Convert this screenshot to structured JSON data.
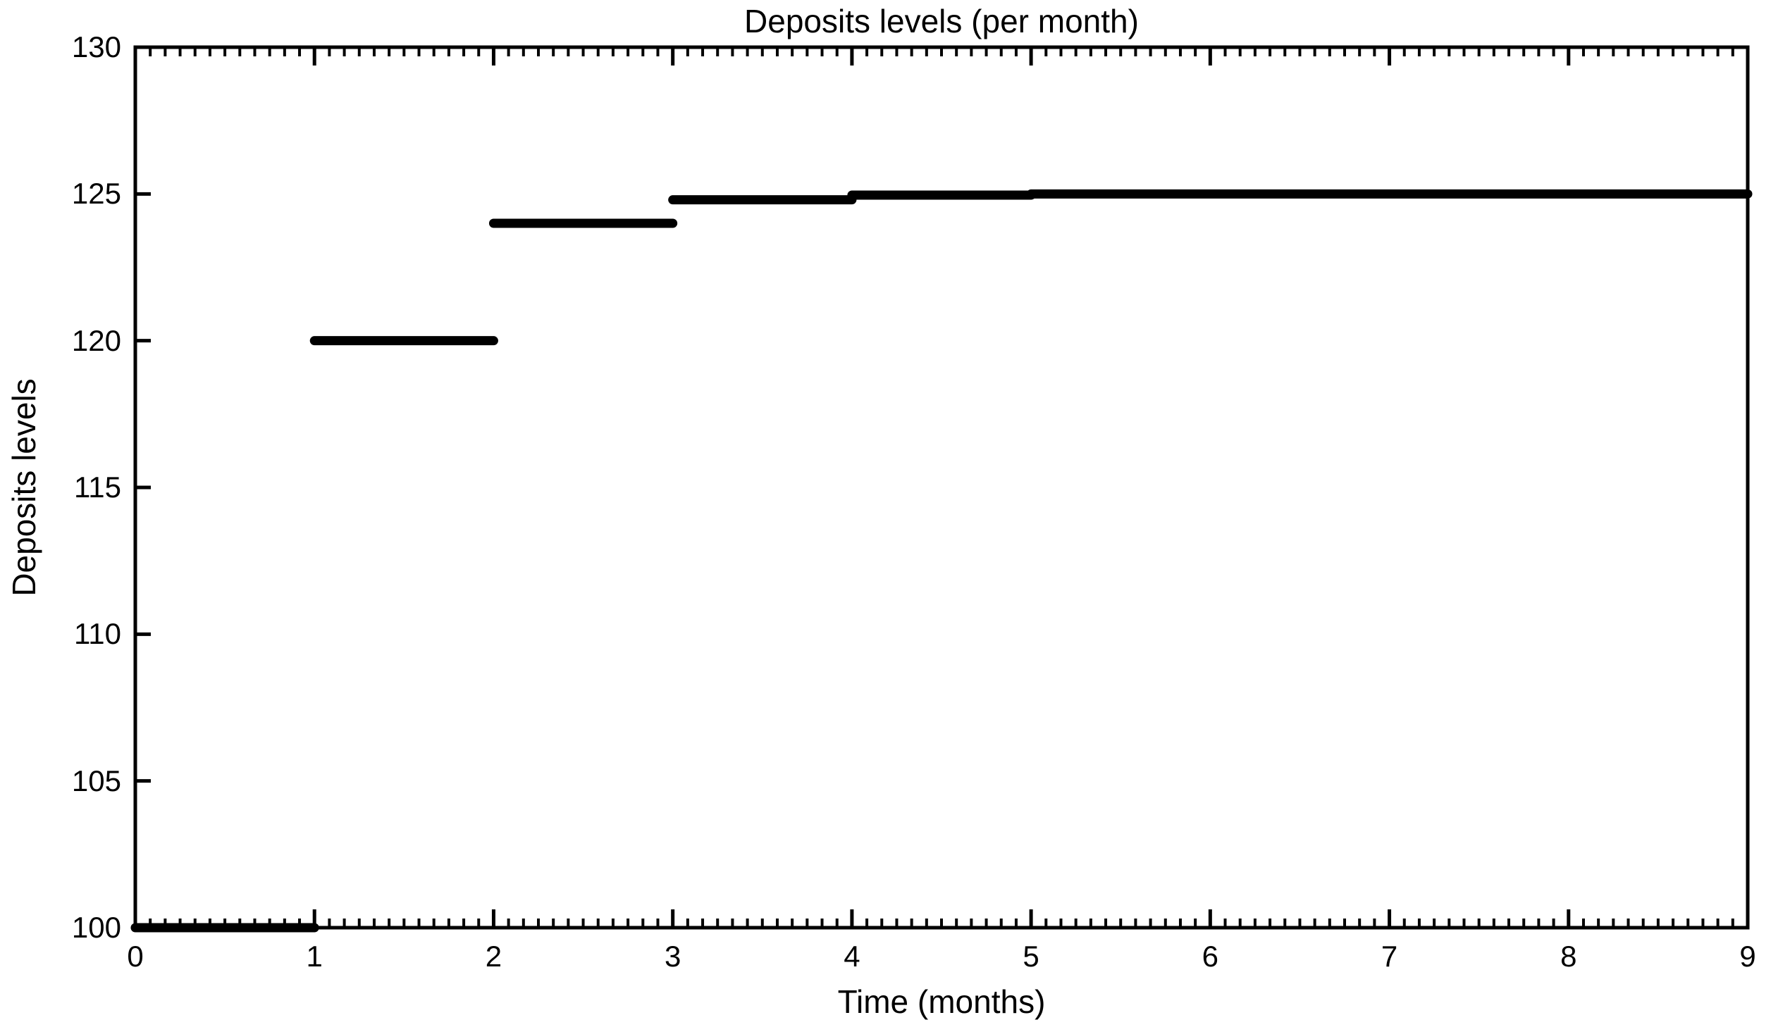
{
  "chart": {
    "title": "Deposits levels (per month)",
    "xlabel": "Time (months)",
    "ylabel": "Deposits levels"
  },
  "chart_data": {
    "type": "line",
    "subtype": "step-post",
    "title": "Deposits levels (per month)",
    "xlabel": "Time (months)",
    "ylabel": "Deposits levels",
    "xlim": [
      0,
      9
    ],
    "ylim": [
      100,
      130
    ],
    "x_major_ticks": [
      0,
      1,
      2,
      3,
      4,
      5,
      6,
      7,
      8,
      9
    ],
    "x_tick_labels": [
      "0",
      "1",
      "2",
      "3",
      "4",
      "5",
      "6",
      "7",
      "8",
      "9"
    ],
    "y_major_ticks": [
      100,
      105,
      110,
      115,
      120,
      125,
      130
    ],
    "y_tick_labels": [
      "100",
      "105",
      "110",
      "115",
      "120",
      "125",
      "130"
    ],
    "x_minor_subdivisions": 12,
    "grid": false,
    "legend": false,
    "line_color": "#000000",
    "background_color": "#ffffff",
    "series": [
      {
        "name": "Deposits levels",
        "step_x": [
          0,
          1,
          2,
          3,
          4,
          5
        ],
        "step_y": [
          100,
          120,
          124,
          124.8,
          124.96,
          125
        ],
        "x_end": 9,
        "segments": [
          [
            0,
            1,
            100
          ],
          [
            1,
            2,
            120
          ],
          [
            2,
            3,
            124
          ],
          [
            3,
            4,
            124.8
          ],
          [
            4,
            5,
            124.96
          ],
          [
            5,
            9,
            125
          ]
        ]
      }
    ]
  }
}
